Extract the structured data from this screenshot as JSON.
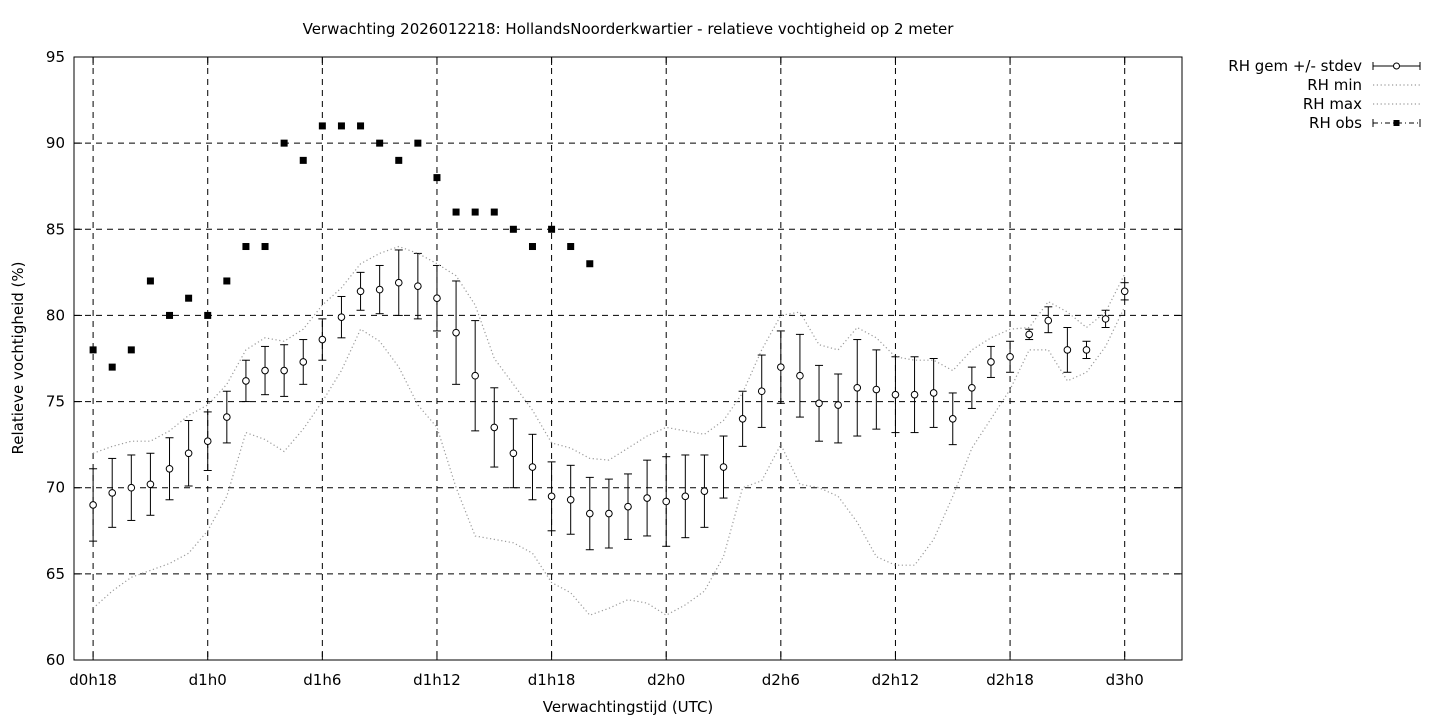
{
  "chart_data": {
    "type": "scatter",
    "title": "Verwachting 2026012218: HollandsNoorderkwartier - relatieve vochtigheid op 2 meter",
    "xlabel": "Verwachtingstijd (UTC)",
    "ylabel": "Relatieve vochtigheid (%)",
    "x_unit": "lead time in hours",
    "xlim": [
      17,
      75
    ],
    "ylim": [
      60,
      95
    ],
    "y_ticks": [
      60,
      65,
      70,
      75,
      80,
      85,
      90,
      95
    ],
    "x_ticks": [
      {
        "hour": 18,
        "label": "d0h18"
      },
      {
        "hour": 24,
        "label": "d1h0"
      },
      {
        "hour": 30,
        "label": "d1h6"
      },
      {
        "hour": 36,
        "label": "d1h12"
      },
      {
        "hour": 42,
        "label": "d1h18"
      },
      {
        "hour": 48,
        "label": "d2h0"
      },
      {
        "hour": 54,
        "label": "d2h6"
      },
      {
        "hour": 60,
        "label": "d2h12"
      },
      {
        "hour": 66,
        "label": "d2h18"
      },
      {
        "hour": 72,
        "label": "d3h0"
      }
    ],
    "grid": true,
    "legend_position": "outside-top-right",
    "series": [
      {
        "name": "RH gem +/- stdev",
        "style": "points-errorbars",
        "x": [
          18,
          19,
          20,
          21,
          22,
          23,
          24,
          25,
          26,
          27,
          28,
          29,
          30,
          31,
          32,
          33,
          34,
          35,
          36,
          37,
          38,
          39,
          40,
          41,
          42,
          43,
          44,
          45,
          46,
          47,
          48,
          49,
          50,
          51,
          52,
          53,
          54,
          55,
          56,
          57,
          58,
          59,
          60,
          61,
          62,
          63,
          64,
          65,
          66,
          67,
          68,
          69,
          70,
          71,
          72
        ],
        "values": [
          69.0,
          69.7,
          70.0,
          70.2,
          71.1,
          72.0,
          72.7,
          74.1,
          76.2,
          76.8,
          76.8,
          77.3,
          78.6,
          79.9,
          81.4,
          81.5,
          81.9,
          81.7,
          81.0,
          79.0,
          76.5,
          73.5,
          72.0,
          71.2,
          69.5,
          69.3,
          68.5,
          68.5,
          68.9,
          69.4,
          69.2,
          69.5,
          69.8,
          71.2,
          74.0,
          75.6,
          77.0,
          76.5,
          74.9,
          74.8,
          75.8,
          75.7,
          75.4,
          75.4,
          75.5,
          74.0,
          75.8,
          77.3,
          77.6,
          78.9,
          79.7,
          78.0,
          78.0,
          79.8,
          81.4
        ],
        "lower": [
          66.9,
          67.7,
          68.1,
          68.4,
          69.3,
          70.1,
          71.0,
          72.6,
          75.0,
          75.4,
          75.3,
          76.0,
          77.4,
          78.7,
          80.3,
          80.1,
          80.0,
          79.8,
          79.1,
          76.0,
          73.3,
          71.2,
          70.0,
          69.3,
          67.5,
          67.3,
          66.4,
          66.5,
          67.0,
          67.2,
          66.6,
          67.1,
          67.7,
          69.4,
          72.4,
          73.5,
          74.9,
          74.1,
          72.7,
          72.6,
          73.0,
          73.4,
          73.2,
          73.2,
          73.5,
          72.5,
          74.6,
          76.4,
          76.7,
          78.6,
          79.0,
          76.7,
          77.5,
          79.3,
          80.9
        ],
        "upper": [
          71.1,
          71.7,
          71.9,
          72.0,
          72.9,
          73.9,
          74.4,
          75.6,
          77.4,
          78.2,
          78.3,
          78.6,
          79.8,
          81.1,
          82.5,
          82.9,
          83.8,
          83.6,
          82.9,
          82.0,
          79.7,
          75.8,
          74.0,
          73.1,
          71.5,
          71.3,
          70.6,
          70.5,
          70.8,
          71.6,
          71.8,
          71.9,
          71.9,
          73.0,
          75.6,
          77.7,
          79.1,
          78.9,
          77.1,
          76.6,
          78.6,
          78.0,
          77.6,
          77.6,
          77.5,
          75.5,
          77.0,
          78.2,
          78.5,
          79.2,
          80.5,
          79.3,
          78.5,
          80.3,
          81.9
        ]
      },
      {
        "name": "RH min",
        "style": "dotted-line",
        "x": [
          18,
          19,
          20,
          21,
          22,
          23,
          24,
          25,
          26,
          27,
          28,
          29,
          30,
          31,
          32,
          33,
          34,
          35,
          36,
          37,
          38,
          39,
          40,
          41,
          42,
          43,
          44,
          45,
          46,
          47,
          48,
          49,
          50,
          51,
          52,
          53,
          54,
          55,
          56,
          57,
          58,
          59,
          60,
          61,
          62,
          63,
          64,
          65,
          66,
          67,
          68,
          69,
          70,
          71,
          72
        ],
        "values": [
          63.0,
          64.0,
          64.8,
          65.2,
          65.6,
          66.2,
          67.5,
          69.5,
          73.2,
          72.8,
          72.1,
          73.4,
          75.0,
          76.8,
          79.2,
          78.5,
          77.0,
          74.8,
          73.5,
          70.0,
          67.2,
          67.0,
          66.8,
          66.2,
          64.5,
          63.9,
          62.6,
          63.0,
          63.5,
          63.3,
          62.6,
          63.2,
          64.0,
          66.0,
          70.0,
          70.4,
          72.5,
          70.2,
          70.0,
          69.5,
          68.0,
          66.0,
          65.5,
          65.5,
          67.0,
          69.5,
          72.3,
          74.0,
          75.7,
          78.0,
          78.0,
          76.2,
          76.7,
          78.2,
          80.5
        ]
      },
      {
        "name": "RH max",
        "style": "dotted-line",
        "x": [
          18,
          19,
          20,
          21,
          22,
          23,
          24,
          25,
          26,
          27,
          28,
          29,
          30,
          31,
          32,
          33,
          34,
          35,
          36,
          37,
          38,
          39,
          40,
          41,
          42,
          43,
          44,
          45,
          46,
          47,
          48,
          49,
          50,
          51,
          52,
          53,
          54,
          55,
          56,
          57,
          58,
          59,
          60,
          61,
          62,
          63,
          64,
          65,
          66,
          67,
          68,
          69,
          70,
          71,
          72
        ],
        "values": [
          72.0,
          72.4,
          72.7,
          72.7,
          73.3,
          74.2,
          74.8,
          76.0,
          78.0,
          78.7,
          78.5,
          79.2,
          80.6,
          81.6,
          83.0,
          83.6,
          84.0,
          83.6,
          83.0,
          82.3,
          80.6,
          77.5,
          76.0,
          74.5,
          72.6,
          72.3,
          71.7,
          71.6,
          72.3,
          73.0,
          73.5,
          73.3,
          73.1,
          73.9,
          75.5,
          78.0,
          80.0,
          80.2,
          78.3,
          78.0,
          79.3,
          78.7,
          77.6,
          77.4,
          77.4,
          76.8,
          78.0,
          78.7,
          79.2,
          79.3,
          80.8,
          80.2,
          79.3,
          80.2,
          82.4
        ]
      },
      {
        "name": "RH obs",
        "style": "filled-squares",
        "x": [
          18,
          19,
          20,
          21,
          22,
          23,
          24,
          25,
          26,
          27,
          28,
          29,
          30,
          31,
          32,
          33,
          34,
          35,
          36,
          37,
          38,
          39,
          40,
          41,
          42,
          43,
          44
        ],
        "values": [
          78,
          77,
          78,
          82,
          80,
          81,
          80,
          82,
          84,
          84,
          90,
          89,
          91,
          91,
          91,
          90,
          89,
          90,
          88,
          86,
          86,
          86,
          85,
          84,
          85,
          84,
          83
        ]
      }
    ]
  }
}
